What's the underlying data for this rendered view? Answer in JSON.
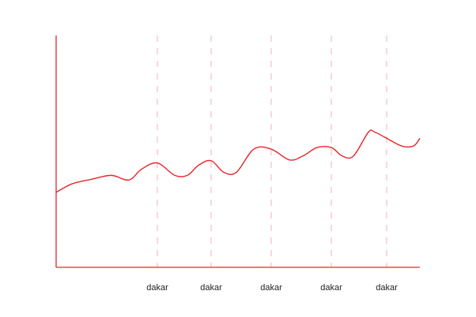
{
  "chart_data": {
    "type": "line",
    "title": "",
    "xlabel": "",
    "ylabel": "",
    "x_tick_labels": [
      "dakar",
      "dakar",
      "dakar",
      "dakar",
      "dakar"
    ],
    "x_tick_values": [
      128,
      196,
      272,
      348,
      418
    ],
    "xlim": [
      0,
      460
    ],
    "ylim": [
      0,
      300
    ],
    "grid": "vertical dashed lines at x ticks",
    "legend": "none",
    "series": [
      {
        "color": "#e8242a",
        "x": [
          0,
          20,
          45,
          70,
          92,
          108,
          128,
          150,
          166,
          180,
          196,
          212,
          228,
          250,
          272,
          295,
          312,
          330,
          348,
          362,
          376,
          395,
          403,
          418,
          437,
          452,
          460
        ],
        "y": [
          97,
          108,
          114,
          119,
          113,
          127,
          135,
          119,
          119,
          132,
          138,
          123,
          123,
          153,
          153,
          139,
          144,
          155,
          155,
          144,
          144,
          175,
          175,
          167,
          157,
          157,
          167
        ]
      }
    ]
  },
  "colors": {
    "axis": "#e8242a",
    "line": "#e8242a",
    "grid": "#f2b3b5",
    "tick_text": "#222222"
  }
}
